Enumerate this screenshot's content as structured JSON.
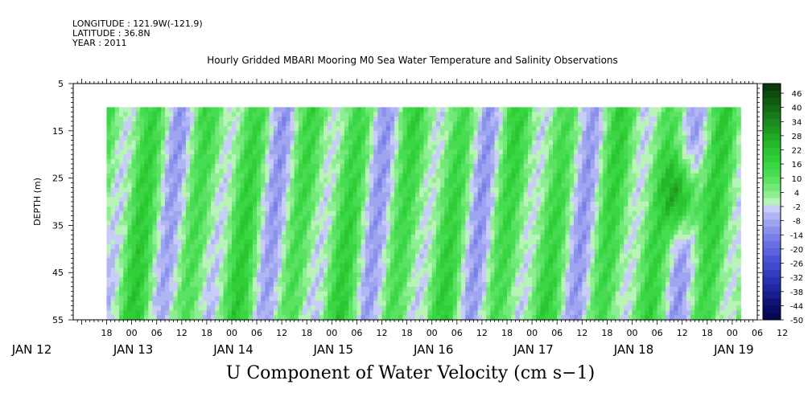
{
  "header": {
    "longitude": "LONGITUDE : 121.9W(-121.9)",
    "latitude": "LATITUDE : 36.8N",
    "year": "YEAR : 2011"
  },
  "chart_data": {
    "type": "heatmap",
    "title": "Hourly Gridded MBARI Mooring M0 Sea Water Temperature and Salinity Observations",
    "caption": "U Component of Water Velocity (cm s−1)",
    "ylabel": "DEPTH (m)",
    "ylim": [
      55,
      5
    ],
    "y_ticks": [
      5,
      15,
      25,
      35,
      45,
      55
    ],
    "y_tick_labels": [
      "5",
      "15",
      "25",
      "35",
      "45",
      "55"
    ],
    "x_hour_labels": [
      "18",
      "00",
      "06",
      "12",
      "18",
      "00",
      "06",
      "12",
      "18",
      "00",
      "06",
      "12",
      "18",
      "00",
      "06",
      "12",
      "18",
      "00",
      "06",
      "12",
      "18",
      "00",
      "06",
      "12",
      "18",
      "00",
      "06",
      "12"
    ],
    "x_day_labels": [
      "JAN 12",
      "JAN 13",
      "JAN 14",
      "JAN 15",
      "JAN 16",
      "JAN 17",
      "JAN 18",
      "JAN 19"
    ],
    "x_range_hours": [
      10,
      174
    ],
    "data_x_range_hours": [
      18,
      170
    ],
    "data_depth_range": [
      10,
      55
    ],
    "colorbar_labels": [
      "46",
      "40",
      "34",
      "28",
      "22",
      "16",
      "10",
      "4",
      "-2",
      "-8",
      "-14",
      "-20",
      "-26",
      "-32",
      "-38",
      "-44",
      "-50"
    ],
    "colorbar_levels": [
      50,
      46,
      43,
      40,
      37,
      34,
      31,
      28,
      25,
      22,
      19,
      16,
      13,
      10,
      7,
      4,
      1,
      -2,
      -5,
      -8,
      -11,
      -14,
      -17,
      -20,
      -23,
      -26,
      -29,
      -32,
      -35,
      -38,
      -41,
      -44,
      -47,
      -50
    ],
    "colorbar_colors": [
      "#0a3a0a",
      "#0f4a0f",
      "#125a12",
      "#156a15",
      "#187a18",
      "#1c8a1c",
      "#1f9a20",
      "#22aa25",
      "#26b82a",
      "#2ac530",
      "#30cf38",
      "#3ad645",
      "#48dc52",
      "#5ae262",
      "#72e878",
      "#8eee92",
      "#b8f4b8",
      "#c8cdf8",
      "#b0b6f4",
      "#9ea4f0",
      "#8a92ec",
      "#7880e8",
      "#6870e4",
      "#5a62de",
      "#4c54d6",
      "#4048cc",
      "#343cc0",
      "#2a32b0",
      "#2028a0",
      "#181e8c",
      "#101478",
      "#0a0c64",
      "#060850"
    ]
  }
}
